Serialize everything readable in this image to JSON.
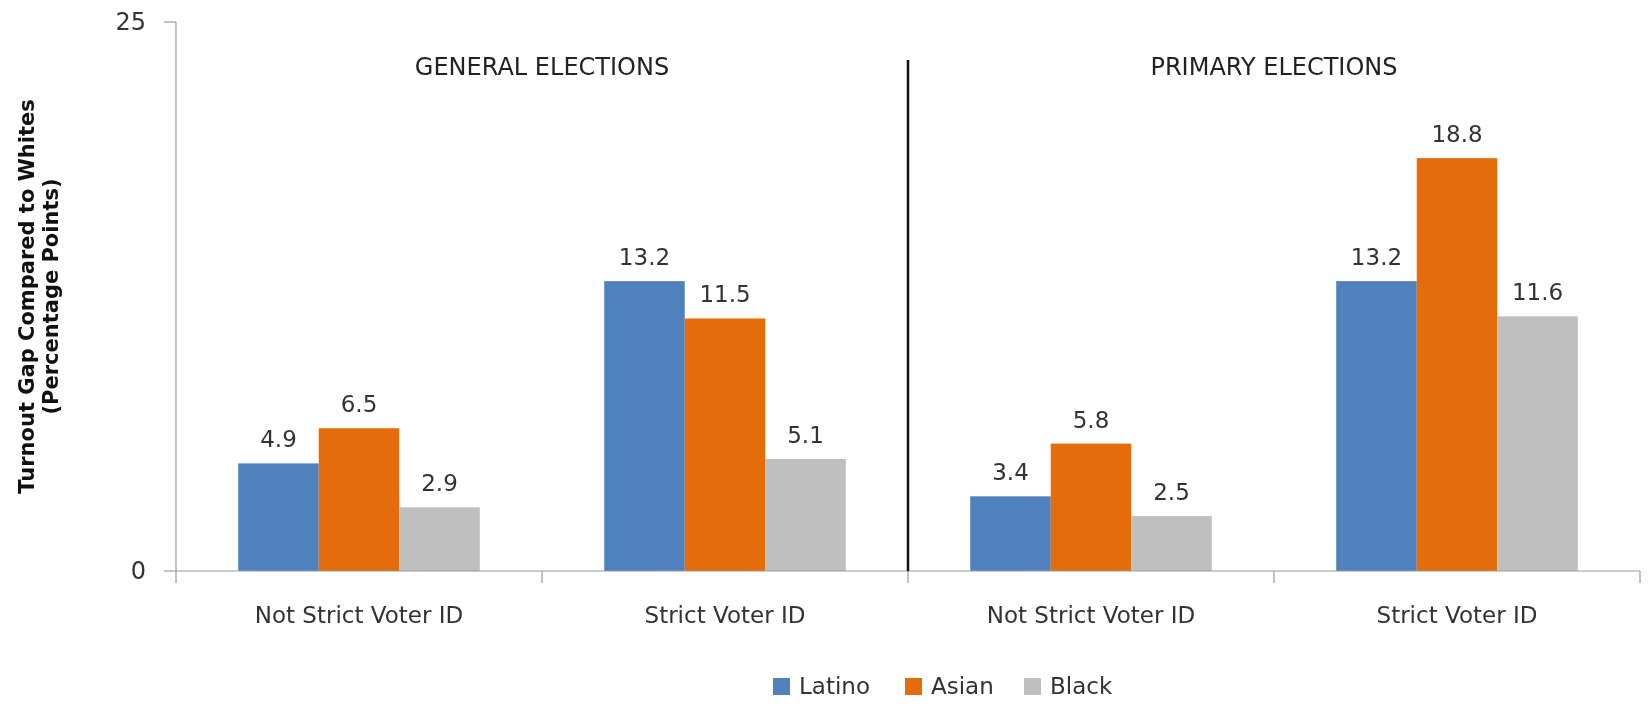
{
  "chart_data": {
    "type": "bar",
    "categories": [
      "Not Strict Voter ID",
      "Strict Voter ID",
      "Not Strict Voter ID",
      "Strict Voter ID"
    ],
    "series": [
      {
        "name": "Latino",
        "color": "#4f81bd",
        "values": [
          4.9,
          13.2,
          3.4,
          13.2
        ]
      },
      {
        "name": "Asian",
        "color": "#e46c0a",
        "values": [
          6.5,
          11.5,
          5.8,
          18.8
        ]
      },
      {
        "name": "Black",
        "color": "#bfbfbf",
        "values": [
          2.9,
          5.1,
          2.5,
          11.6
        ]
      }
    ],
    "ylabel": "Turnout Gap Compared to Whites\n(Percentage Points)",
    "annotations": [
      "GENERAL ELECTIONS",
      "PRIMARY ELECTIONS"
    ],
    "ylim": [
      0,
      25
    ],
    "yticks": [
      0,
      25
    ],
    "grid": false,
    "legend": "bottom",
    "data_labels": true
  }
}
